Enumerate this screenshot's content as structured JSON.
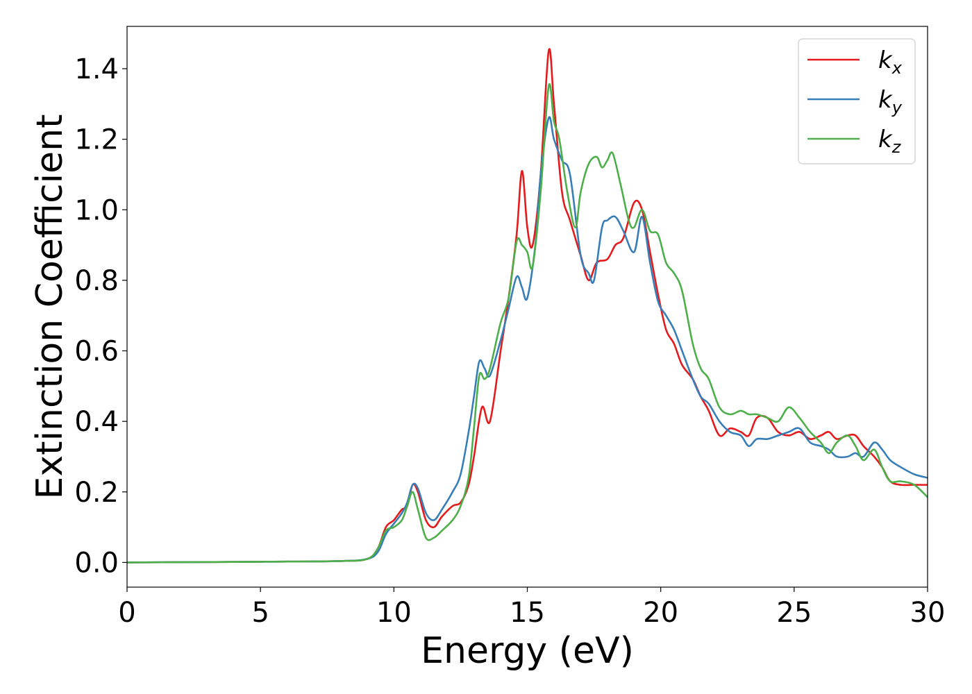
{
  "chart_data": {
    "type": "line",
    "title": "",
    "xlabel": "Energy (eV)",
    "ylabel": "Extinction Coefficient",
    "xlim": [
      0,
      30
    ],
    "ylim": [
      -0.07,
      1.52
    ],
    "xticks": [
      0,
      5,
      10,
      15,
      20,
      25,
      30
    ],
    "xtick_labels": [
      "0",
      "5",
      "10",
      "15",
      "20",
      "25",
      "30"
    ],
    "yticks": [
      0.0,
      0.2,
      0.4,
      0.6,
      0.8,
      1.0,
      1.2,
      1.4
    ],
    "ytick_labels": [
      "0.0",
      "0.2",
      "0.4",
      "0.6",
      "0.8",
      "1.0",
      "1.2",
      "1.4"
    ],
    "grid": false,
    "legend_position": "top-right",
    "series": [
      {
        "name": "k",
        "subscript": "x",
        "color": "#e41a1c",
        "points": [
          [
            0,
            0
          ],
          [
            5,
            0.002
          ],
          [
            8,
            0.004
          ],
          [
            9,
            0.01
          ],
          [
            9.4,
            0.04
          ],
          [
            9.7,
            0.1
          ],
          [
            10.0,
            0.12
          ],
          [
            10.3,
            0.15
          ],
          [
            10.5,
            0.16
          ],
          [
            10.7,
            0.22
          ],
          [
            10.9,
            0.2
          ],
          [
            11.2,
            0.12
          ],
          [
            11.5,
            0.1
          ],
          [
            11.8,
            0.13
          ],
          [
            12.2,
            0.16
          ],
          [
            12.5,
            0.17
          ],
          [
            12.8,
            0.22
          ],
          [
            13.0,
            0.3
          ],
          [
            13.3,
            0.44
          ],
          [
            13.6,
            0.4
          ],
          [
            14.0,
            0.6
          ],
          [
            14.3,
            0.75
          ],
          [
            14.6,
            0.93
          ],
          [
            14.8,
            1.11
          ],
          [
            15.0,
            0.95
          ],
          [
            15.2,
            0.9
          ],
          [
            15.5,
            1.1
          ],
          [
            15.8,
            1.45
          ],
          [
            16.0,
            1.3
          ],
          [
            16.3,
            1.05
          ],
          [
            16.6,
            0.97
          ],
          [
            17.0,
            0.87
          ],
          [
            17.3,
            0.8
          ],
          [
            17.6,
            0.85
          ],
          [
            18.0,
            0.86
          ],
          [
            18.3,
            0.9
          ],
          [
            18.6,
            0.92
          ],
          [
            19.0,
            1.02
          ],
          [
            19.3,
            1.0
          ],
          [
            19.6,
            0.88
          ],
          [
            19.9,
            0.76
          ],
          [
            20.2,
            0.66
          ],
          [
            20.5,
            0.62
          ],
          [
            20.8,
            0.56
          ],
          [
            21.2,
            0.52
          ],
          [
            21.5,
            0.47
          ],
          [
            21.8,
            0.43
          ],
          [
            22.2,
            0.36
          ],
          [
            22.6,
            0.38
          ],
          [
            23.0,
            0.37
          ],
          [
            23.3,
            0.36
          ],
          [
            23.6,
            0.41
          ],
          [
            24.0,
            0.41
          ],
          [
            24.4,
            0.37
          ],
          [
            24.8,
            0.36
          ],
          [
            25.2,
            0.37
          ],
          [
            25.6,
            0.35
          ],
          [
            26.0,
            0.36
          ],
          [
            26.3,
            0.37
          ],
          [
            26.6,
            0.35
          ],
          [
            27.0,
            0.36
          ],
          [
            27.3,
            0.36
          ],
          [
            27.6,
            0.33
          ],
          [
            28.0,
            0.3
          ],
          [
            28.3,
            0.27
          ],
          [
            28.6,
            0.23
          ],
          [
            29.0,
            0.22
          ],
          [
            29.5,
            0.22
          ],
          [
            30,
            0.22
          ]
        ]
      },
      {
        "name": "k",
        "subscript": "y",
        "color": "#377eb8",
        "points": [
          [
            0,
            0
          ],
          [
            5,
            0.002
          ],
          [
            8,
            0.004
          ],
          [
            9,
            0.01
          ],
          [
            9.4,
            0.03
          ],
          [
            9.7,
            0.08
          ],
          [
            10.0,
            0.11
          ],
          [
            10.3,
            0.14
          ],
          [
            10.5,
            0.17
          ],
          [
            10.7,
            0.22
          ],
          [
            10.9,
            0.21
          ],
          [
            11.2,
            0.14
          ],
          [
            11.5,
            0.12
          ],
          [
            11.8,
            0.15
          ],
          [
            12.2,
            0.2
          ],
          [
            12.5,
            0.25
          ],
          [
            12.8,
            0.37
          ],
          [
            13.0,
            0.47
          ],
          [
            13.2,
            0.57
          ],
          [
            13.4,
            0.55
          ],
          [
            13.6,
            0.53
          ],
          [
            14.0,
            0.63
          ],
          [
            14.3,
            0.72
          ],
          [
            14.6,
            0.81
          ],
          [
            14.8,
            0.78
          ],
          [
            15.0,
            0.75
          ],
          [
            15.3,
            0.9
          ],
          [
            15.5,
            1.1
          ],
          [
            15.8,
            1.26
          ],
          [
            16.0,
            1.2
          ],
          [
            16.3,
            1.14
          ],
          [
            16.6,
            1.1
          ],
          [
            17.0,
            0.87
          ],
          [
            17.3,
            0.82
          ],
          [
            17.5,
            0.8
          ],
          [
            17.8,
            0.95
          ],
          [
            18.0,
            0.97
          ],
          [
            18.3,
            0.98
          ],
          [
            18.6,
            0.94
          ],
          [
            19.0,
            0.88
          ],
          [
            19.3,
            0.98
          ],
          [
            19.6,
            0.85
          ],
          [
            19.9,
            0.74
          ],
          [
            20.2,
            0.7
          ],
          [
            20.5,
            0.66
          ],
          [
            20.8,
            0.6
          ],
          [
            21.2,
            0.52
          ],
          [
            21.5,
            0.47
          ],
          [
            21.8,
            0.45
          ],
          [
            22.2,
            0.4
          ],
          [
            22.6,
            0.37
          ],
          [
            23.0,
            0.36
          ],
          [
            23.3,
            0.33
          ],
          [
            23.6,
            0.35
          ],
          [
            24.0,
            0.35
          ],
          [
            24.4,
            0.36
          ],
          [
            24.8,
            0.37
          ],
          [
            25.2,
            0.38
          ],
          [
            25.6,
            0.34
          ],
          [
            26.0,
            0.33
          ],
          [
            26.3,
            0.32
          ],
          [
            26.6,
            0.3
          ],
          [
            27.0,
            0.3
          ],
          [
            27.3,
            0.31
          ],
          [
            27.6,
            0.3
          ],
          [
            28.0,
            0.34
          ],
          [
            28.3,
            0.32
          ],
          [
            28.6,
            0.29
          ],
          [
            29.0,
            0.27
          ],
          [
            29.5,
            0.25
          ],
          [
            30,
            0.24
          ]
        ]
      },
      {
        "name": "k",
        "subscript": "z",
        "color": "#4daf4a",
        "points": [
          [
            0,
            0
          ],
          [
            5,
            0.002
          ],
          [
            8,
            0.004
          ],
          [
            9,
            0.01
          ],
          [
            9.4,
            0.04
          ],
          [
            9.7,
            0.09
          ],
          [
            10.0,
            0.1
          ],
          [
            10.3,
            0.12
          ],
          [
            10.5,
            0.16
          ],
          [
            10.7,
            0.2
          ],
          [
            10.9,
            0.15
          ],
          [
            11.2,
            0.07
          ],
          [
            11.5,
            0.07
          ],
          [
            11.8,
            0.09
          ],
          [
            12.2,
            0.12
          ],
          [
            12.5,
            0.16
          ],
          [
            12.8,
            0.24
          ],
          [
            13.0,
            0.38
          ],
          [
            13.2,
            0.53
          ],
          [
            13.4,
            0.52
          ],
          [
            13.6,
            0.55
          ],
          [
            14.0,
            0.68
          ],
          [
            14.3,
            0.75
          ],
          [
            14.6,
            0.91
          ],
          [
            14.8,
            0.9
          ],
          [
            15.0,
            0.88
          ],
          [
            15.2,
            0.84
          ],
          [
            15.5,
            1.05
          ],
          [
            15.8,
            1.35
          ],
          [
            16.0,
            1.25
          ],
          [
            16.2,
            1.2
          ],
          [
            16.5,
            1.05
          ],
          [
            16.8,
            0.95
          ],
          [
            17.0,
            1.05
          ],
          [
            17.3,
            1.13
          ],
          [
            17.6,
            1.15
          ],
          [
            17.8,
            1.12
          ],
          [
            18.0,
            1.14
          ],
          [
            18.2,
            1.16
          ],
          [
            18.5,
            1.07
          ],
          [
            18.8,
            0.97
          ],
          [
            19.0,
            0.95
          ],
          [
            19.3,
            1.0
          ],
          [
            19.6,
            0.94
          ],
          [
            19.9,
            0.93
          ],
          [
            20.2,
            0.85
          ],
          [
            20.5,
            0.82
          ],
          [
            20.8,
            0.77
          ],
          [
            21.2,
            0.62
          ],
          [
            21.5,
            0.55
          ],
          [
            21.8,
            0.52
          ],
          [
            22.2,
            0.44
          ],
          [
            22.6,
            0.42
          ],
          [
            23.0,
            0.43
          ],
          [
            23.3,
            0.42
          ],
          [
            23.6,
            0.42
          ],
          [
            24.0,
            0.41
          ],
          [
            24.4,
            0.4
          ],
          [
            24.8,
            0.44
          ],
          [
            25.2,
            0.41
          ],
          [
            25.6,
            0.37
          ],
          [
            26.0,
            0.34
          ],
          [
            26.3,
            0.31
          ],
          [
            26.6,
            0.34
          ],
          [
            27.0,
            0.36
          ],
          [
            27.3,
            0.33
          ],
          [
            27.6,
            0.29
          ],
          [
            28.0,
            0.32
          ],
          [
            28.3,
            0.27
          ],
          [
            28.6,
            0.23
          ],
          [
            29.0,
            0.23
          ],
          [
            29.5,
            0.22
          ],
          [
            30,
            0.185
          ]
        ]
      }
    ]
  }
}
